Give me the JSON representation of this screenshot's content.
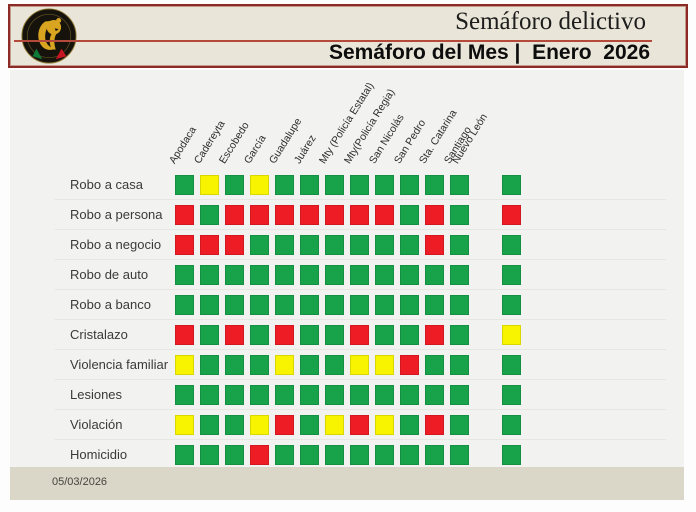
{
  "header": {
    "title": "Semáforo delictivo",
    "subtitle": "Semáforo del Mes |  Enero  2026",
    "logo": "lion-emblem"
  },
  "footer": {
    "date": "05/03/2026"
  },
  "colors": {
    "green": "#18a34b",
    "yellow": "#f8f400",
    "red": "#ee1c25"
  },
  "chart_data": {
    "type": "heatmap",
    "title": "Semáforo del Mes | Enero 2026",
    "subtitle_top": "Semáforo delictivo",
    "legend_position": "none",
    "columns": [
      "Apodaca",
      "Cadereyta",
      "Escobedo",
      "García",
      "Guadalupe",
      "Juárez",
      "Mty (Policía Estatal)",
      "Mty(Policía Regia)",
      "San Nicolás",
      "San Pedro",
      "Sta. Catarina",
      "Santiago",
      "Nuevo León"
    ],
    "rows": [
      "Robo a casa",
      "Robo a persona",
      "Robo a negocio",
      "Robo de auto",
      "Robo a banco",
      "Cristalazo",
      "Violencia familiar",
      "Lesiones",
      "Violación",
      "Homicidio"
    ],
    "values": [
      [
        "green",
        "yellow",
        "green",
        "yellow",
        "green",
        "green",
        "green",
        "green",
        "green",
        "green",
        "green",
        "green",
        "green"
      ],
      [
        "red",
        "green",
        "red",
        "red",
        "red",
        "red",
        "red",
        "red",
        "red",
        "green",
        "red",
        "green",
        "red"
      ],
      [
        "red",
        "red",
        "red",
        "green",
        "green",
        "green",
        "green",
        "green",
        "green",
        "green",
        "red",
        "green",
        "green"
      ],
      [
        "green",
        "green",
        "green",
        "green",
        "green",
        "green",
        "green",
        "green",
        "green",
        "green",
        "green",
        "green",
        "green"
      ],
      [
        "green",
        "green",
        "green",
        "green",
        "green",
        "green",
        "green",
        "green",
        "green",
        "green",
        "green",
        "green",
        "green"
      ],
      [
        "red",
        "green",
        "red",
        "green",
        "red",
        "green",
        "green",
        "red",
        "green",
        "green",
        "red",
        "green",
        "yellow"
      ],
      [
        "yellow",
        "green",
        "green",
        "green",
        "yellow",
        "green",
        "green",
        "yellow",
        "yellow",
        "red",
        "green",
        "green",
        "green"
      ],
      [
        "green",
        "green",
        "green",
        "green",
        "green",
        "green",
        "green",
        "green",
        "green",
        "green",
        "green",
        "green",
        "green"
      ],
      [
        "yellow",
        "green",
        "green",
        "yellow",
        "red",
        "green",
        "yellow",
        "red",
        "yellow",
        "green",
        "red",
        "green",
        "green"
      ],
      [
        "green",
        "green",
        "green",
        "red",
        "green",
        "green",
        "green",
        "green",
        "green",
        "green",
        "green",
        "green",
        "green"
      ]
    ]
  }
}
